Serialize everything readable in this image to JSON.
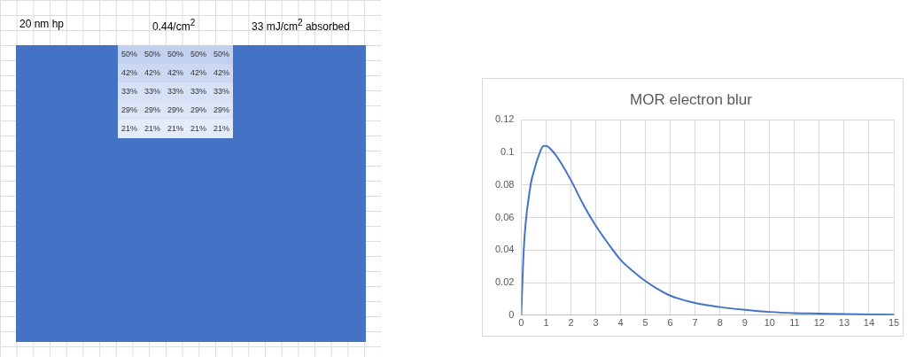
{
  "chart_data": [
    {
      "type": "heatmap",
      "annotations": [
        "20 nm hp",
        "0.44/cm$^{2}$",
        "33 mJ/cm$^{2}$ absorbed"
      ],
      "categories": [
        null,
        null,
        null,
        null,
        null
      ],
      "y_categories": [
        null,
        null,
        null,
        null,
        null
      ],
      "cells": [
        [
          50,
          50,
          50,
          50,
          50
        ],
        [
          42,
          42,
          42,
          42,
          42
        ],
        [
          33,
          33,
          33,
          33,
          33
        ],
        [
          29,
          29,
          29,
          29,
          29
        ],
        [
          21,
          21,
          21,
          21,
          21
        ]
      ],
      "cell_labels": [
        [
          "50%",
          "50%",
          "50%",
          "50%",
          "50%"
        ],
        [
          "42%",
          "42%",
          "42%",
          "42%",
          "42%"
        ],
        [
          "33%",
          "33%",
          "33%",
          "33%",
          "33%"
        ],
        [
          "29%",
          "29%",
          "29%",
          "29%",
          "29%"
        ],
        [
          "21%",
          "21%",
          "21%",
          "21%",
          "21%"
        ]
      ]
    },
    {
      "type": "line",
      "title": "MOR electron blur",
      "series": [
        {
          "color": "#4472c4",
          "x": [
            0,
            0.1,
            0.2,
            0.3,
            0.4,
            0.5,
            0.7,
            0.9,
            1,
            1.25,
            1.5,
            2,
            2.5,
            3,
            3.5,
            4,
            4.5,
            5,
            5.5,
            6,
            7,
            8,
            9,
            10,
            11,
            12,
            13,
            14,
            15
          ],
          "values": [
            0,
            0.04,
            0.06,
            0.072,
            0.082,
            0.088,
            0.098,
            0.104,
            0.104,
            0.101,
            0.096,
            0.083,
            0.068,
            0.055,
            0.044,
            0.034,
            0.027,
            0.021,
            0.016,
            0.012,
            0.0075,
            0.005,
            0.0033,
            0.002,
            0.0013,
            0.001,
            0.0007,
            0.0005,
            0.0003
          ]
        }
      ],
      "xlim": [
        0,
        15
      ],
      "xticks": [
        0,
        1,
        2,
        3,
        4,
        5,
        6,
        7,
        8,
        9,
        10,
        11,
        12,
        13,
        14,
        15
      ],
      "ylim": [
        0,
        0.12
      ],
      "yticks": [
        0,
        0.02,
        0.04,
        0.06,
        0.08,
        0.1,
        0.12
      ],
      "grid": true,
      "marker": "none",
      "line_style": "solid",
      "legend": false
    }
  ]
}
